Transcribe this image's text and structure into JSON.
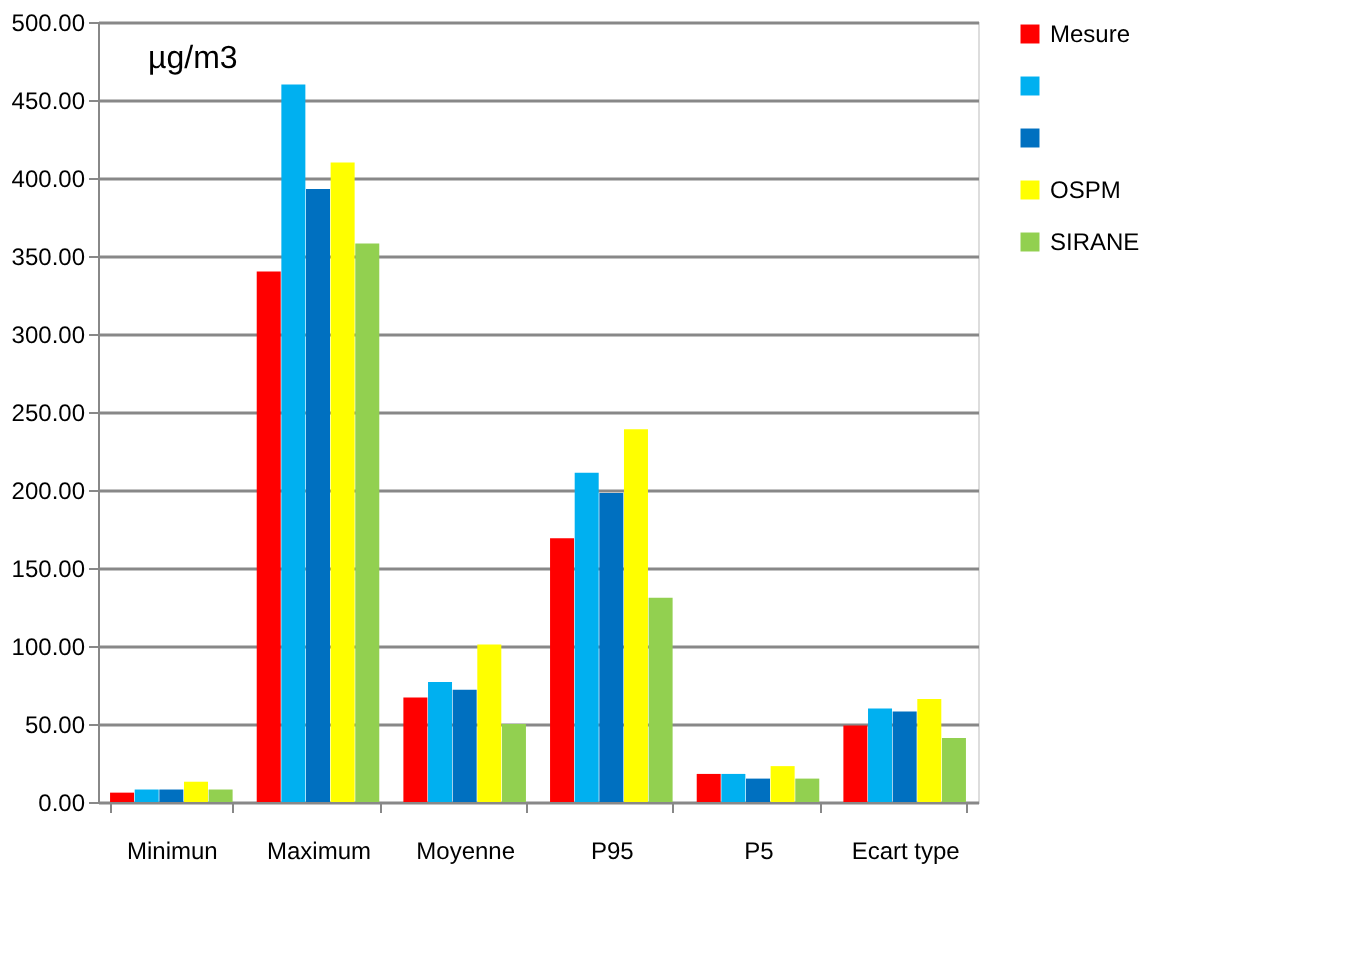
{
  "chart_data": {
    "type": "bar",
    "categories": [
      "Minimun",
      "Maximum",
      "Moyenne",
      "P95",
      "P5",
      "Ecart type"
    ],
    "series": [
      {
        "name": "Mesure",
        "color": "#ff0000",
        "values": [
          6,
          340,
          67,
          169,
          18,
          49
        ]
      },
      {
        "color": "#00b0f0",
        "values": [
          8,
          460,
          77,
          211,
          18,
          60
        ]
      },
      {
        "color": "#0070c0",
        "values": [
          8,
          393,
          72,
          198,
          15,
          58
        ]
      },
      {
        "name": "OSPM",
        "color": "#ffff00",
        "values": [
          13,
          410,
          101,
          239,
          23,
          66
        ]
      },
      {
        "name": "SIRANE",
        "color": "#92d050",
        "values": [
          8,
          358,
          50,
          131,
          15,
          41
        ]
      }
    ],
    "ylim": [
      0,
      500
    ],
    "yticks": [
      {
        "value": 0,
        "label": "0.00"
      },
      {
        "value": 50,
        "label": "50.00"
      },
      {
        "value": 100,
        "label": "100.00"
      },
      {
        "value": 150,
        "label": "150.00"
      },
      {
        "value": 200,
        "label": "200.00"
      },
      {
        "value": 250,
        "label": "250.00"
      },
      {
        "value": 300,
        "label": "300.00"
      },
      {
        "value": 350,
        "label": "350.00"
      },
      {
        "value": 400,
        "label": "400.00"
      },
      {
        "value": 450,
        "label": "450.00"
      },
      {
        "value": 500,
        "label": "500.00"
      }
    ],
    "annotations": [
      "µg/m3"
    ],
    "grid": "y",
    "legend": "right"
  }
}
